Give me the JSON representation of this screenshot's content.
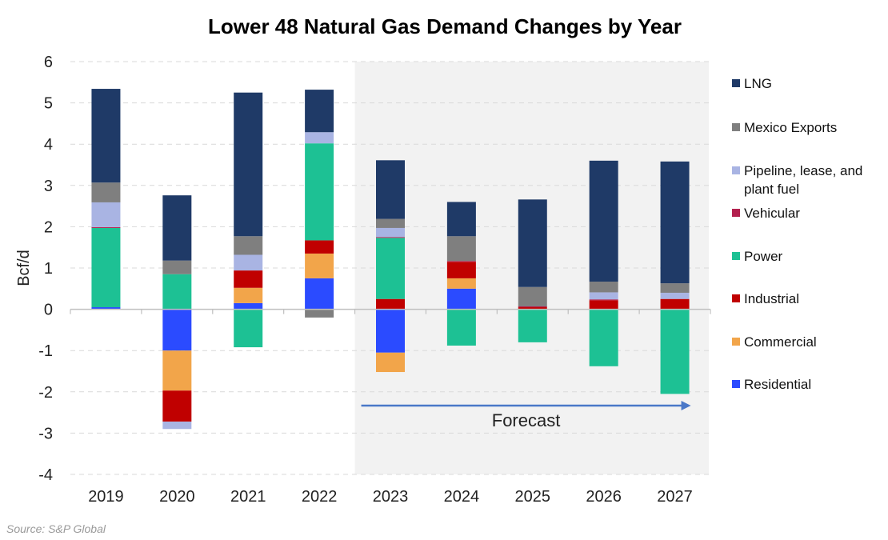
{
  "chart_data": {
    "type": "bar",
    "stacked": true,
    "title": "Lower 48 Natural Gas Demand Changes by Year",
    "ylabel": "Bcf/d",
    "xlabel": "",
    "ylim": [
      -4,
      6
    ],
    "yticks": [
      6,
      5,
      4,
      3,
      2,
      1,
      0,
      -1,
      -2,
      -3,
      -4
    ],
    "grid": true,
    "legend_position": "right",
    "categories": [
      "2019",
      "2020",
      "2021",
      "2022",
      "2023",
      "2024",
      "2025",
      "2026",
      "2027"
    ],
    "forecast": {
      "label": "Forecast",
      "start": "2023",
      "end": "2027",
      "shade_color": "#f2f2f2",
      "arrow_color": "#4a78c8"
    },
    "series": [
      {
        "name": "Residential",
        "color": "#2b4bff",
        "values": [
          0.05,
          -1.0,
          0.15,
          0.75,
          -1.05,
          0.5,
          0.0,
          0.0,
          0.0
        ]
      },
      {
        "name": "Commercial",
        "color": "#f2a54a",
        "values": [
          0.0,
          -0.97,
          0.37,
          0.6,
          -0.47,
          0.25,
          0.0,
          0.0,
          0.0
        ]
      },
      {
        "name": "Industrial",
        "color": "#c00000",
        "values": [
          0.0,
          -0.75,
          0.42,
          0.32,
          0.25,
          0.4,
          0.05,
          0.22,
          0.25
        ]
      },
      {
        "name": "Power",
        "color": "#1dc194",
        "values": [
          1.92,
          0.85,
          -0.92,
          2.35,
          1.48,
          -0.88,
          -0.8,
          -1.38,
          -2.05
        ]
      },
      {
        "name": "Vehicular",
        "color": "#b3204e",
        "values": [
          0.02,
          0.0,
          0.0,
          0.0,
          0.02,
          0.02,
          0.02,
          0.02,
          0.0
        ]
      },
      {
        "name": "Pipeline, lease, and plant fuel",
        "color": "#a9b4e3",
        "values": [
          0.6,
          -0.18,
          0.38,
          0.27,
          0.22,
          0.0,
          0.0,
          0.17,
          0.15
        ]
      },
      {
        "name": "Mexico Exports",
        "color": "#7f7f7f",
        "values": [
          0.48,
          0.33,
          0.45,
          -0.2,
          0.22,
          0.6,
          0.47,
          0.26,
          0.23
        ]
      },
      {
        "name": "LNG",
        "color": "#1f3a67",
        "values": [
          2.27,
          1.58,
          3.48,
          1.03,
          1.42,
          0.83,
          2.12,
          2.93,
          2.95
        ]
      }
    ],
    "legend_order": [
      "LNG",
      "Mexico Exports",
      "Pipeline, lease, and plant fuel",
      "Vehicular",
      "Power",
      "Industrial",
      "Commercial",
      "Residential"
    ],
    "source": "Source: S&P Global"
  }
}
